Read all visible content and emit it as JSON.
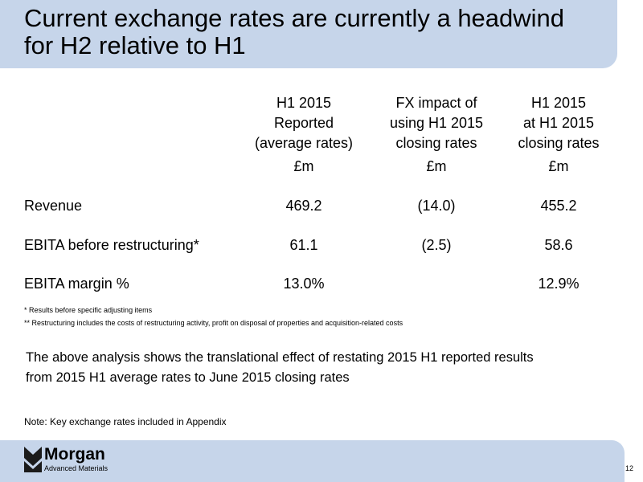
{
  "header": {
    "title_lines": [
      "Current exchange rates are currently a headwind",
      "for H2 relative to H1"
    ]
  },
  "table": {
    "columns": [
      {
        "lines": [
          "H1 2015",
          "Reported",
          "(average rates)"
        ],
        "unit": "£m"
      },
      {
        "lines": [
          "FX impact of",
          "using H1 2015",
          "closing rates"
        ],
        "unit": "£m"
      },
      {
        "lines": [
          "H1 2015",
          "at H1 2015",
          "closing rates"
        ],
        "unit": "£m"
      }
    ],
    "rows": [
      {
        "label": "Revenue",
        "cells": [
          "469.2",
          "(14.0)",
          "455.2"
        ]
      },
      {
        "label": "EBITA before restructuring*",
        "cells": [
          "61.1",
          "(2.5)",
          "58.6"
        ]
      },
      {
        "label": "EBITA margin %",
        "cells": [
          "13.0%",
          null,
          "12.9%"
        ]
      }
    ]
  },
  "footnotes": [
    "* Results before specific adjusting items",
    "** Restructuring includes the costs of restructuring activity, profit on disposal of properties and acquisition-related costs"
  ],
  "summary_lines": [
    "The above analysis shows the translational effect of restating 2015 H1 reported results",
    "from 2015 H1 average rates to June 2015 closing rates"
  ],
  "note": "Note: Key exchange rates included in Appendix",
  "footer": {
    "logo_name": "Morgan",
    "logo_tagline": "Advanced Materials",
    "page_number": "12"
  }
}
